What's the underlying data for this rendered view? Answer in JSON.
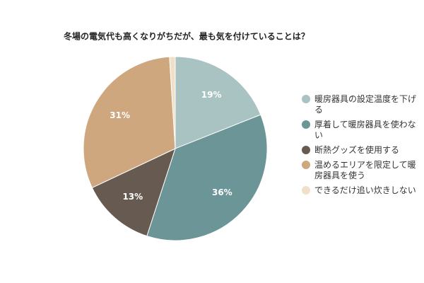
{
  "chart_data": {
    "type": "pie",
    "title": "冬場の電気代も高くなりがちだが、最も気を付けていることは？",
    "categories": [
      "暖房器具の設定温度を下げる",
      "厚着して暖房器具を使わない",
      "断熱グッズを使用する",
      "温めるエリアを限定して暖房器具を使う",
      "できるだけ追い炊きしない"
    ],
    "values": [
      19,
      36,
      13,
      31,
      1
    ],
    "value_labels": [
      "19%",
      "36%",
      "13%",
      "31%",
      null
    ],
    "colors": [
      "#a9c2c2",
      "#6c9597",
      "#675b51",
      "#cfa77f",
      "#f0e0c8"
    ],
    "legend": "right"
  }
}
